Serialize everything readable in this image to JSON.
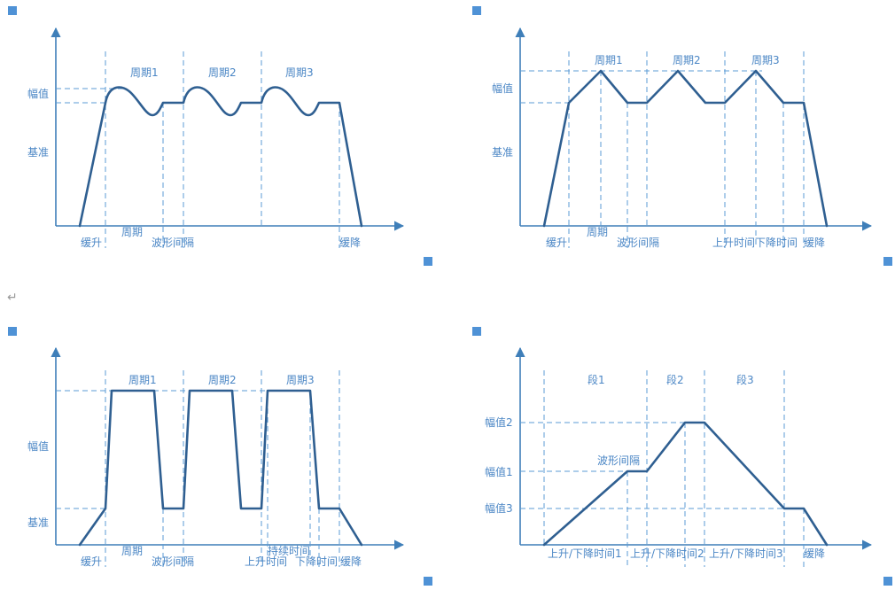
{
  "colors": {
    "axis": "#3f7fb9",
    "wave": "#2f5f91",
    "guide": "#5b9bd5",
    "label": "#4a86c5",
    "marker": "#4f92d6"
  },
  "paragraph_mark": "↵",
  "d1": {
    "amplitude": "幅值",
    "baseline": "基准",
    "cycle1": "周期1",
    "cycle2": "周期2",
    "cycle3": "周期3",
    "ramp_up": "缓升",
    "period": "周期",
    "wave_interval": "波形间隔",
    "ramp_down": "缓降"
  },
  "d2": {
    "amplitude": "幅值",
    "baseline": "基准",
    "cycle1": "周期1",
    "cycle2": "周期2",
    "cycle3": "周期3",
    "ramp_up": "缓升",
    "period": "周期",
    "wave_interval": "波形间隔",
    "rise_time": "上升时间",
    "fall_time": "下降时间",
    "ramp_down": "缓降"
  },
  "d3": {
    "amplitude": "幅值",
    "baseline": "基准",
    "cycle1": "周期1",
    "cycle2": "周期2",
    "cycle3": "周期3",
    "ramp_up": "缓升",
    "period": "周期",
    "wave_interval": "波形间隔",
    "rise_time": "上升时间",
    "hold_time": "持续时间",
    "fall_time": "下降时间",
    "ramp_down": "缓降"
  },
  "d4": {
    "amp2": "幅值2",
    "amp1": "幅值1",
    "amp3": "幅值3",
    "seg1": "段1",
    "seg2": "段2",
    "seg3": "段3",
    "wave_interval": "波形间隔",
    "rf1": "上升/下降时间1",
    "rf2": "上升/下降时间2",
    "rf3": "上升/下降时间3",
    "ramp_down": "缓降"
  }
}
